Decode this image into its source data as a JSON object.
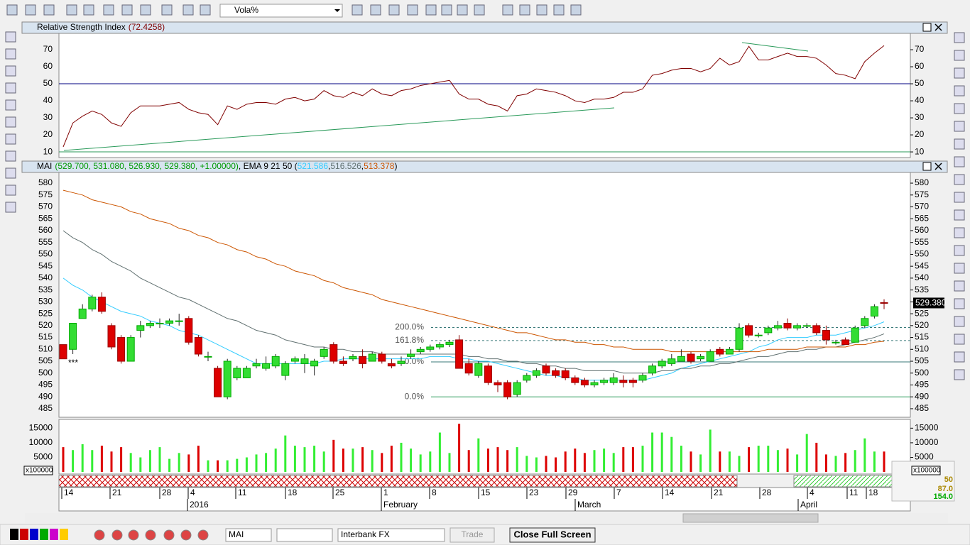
{
  "toolbar": {
    "indicator_combo": "Vola%"
  },
  "chart_data": [
    {
      "type": "line",
      "title": "Relative Strength Index",
      "value_label": "(72.4258)",
      "color": "#800000",
      "level": 50,
      "level_color": "#000080",
      "ylim": [
        6.7,
        79.6
      ],
      "yticks": [
        10,
        20,
        30,
        40,
        50,
        60,
        70
      ],
      "values": [
        13,
        27,
        31,
        34,
        32,
        27,
        25,
        33,
        37,
        37,
        37,
        38,
        39,
        35,
        33,
        32,
        26,
        37,
        35,
        38,
        39,
        39,
        38,
        41,
        42,
        40,
        41,
        46,
        43,
        42,
        45,
        43,
        47,
        44,
        43,
        46,
        47,
        49,
        50,
        51,
        52,
        44,
        41,
        41,
        38,
        37,
        34,
        43,
        44,
        47,
        46,
        45,
        43,
        40,
        39,
        41,
        41,
        42,
        45,
        45,
        47,
        55,
        56,
        58,
        59,
        59,
        57,
        59,
        65,
        61,
        63,
        72,
        64,
        64,
        66,
        68,
        66,
        66,
        65,
        61,
        56,
        55,
        53,
        63,
        68,
        72.4258
      ]
    },
    {
      "type": "candlestick",
      "header": [
        {
          "text": "MAI",
          "color": "#000000"
        },
        {
          "text": "(529.700, 531.080, 526.930, 529.380, +1.00000)",
          "color": "#009900"
        },
        {
          "text": ", EMA 9 21 50 (",
          "color": "#000000"
        },
        {
          "text": "521.586",
          "color": "#33ccff"
        },
        {
          "text": ", ",
          "color": "#000000"
        },
        {
          "text": "516.526",
          "color": "#607070"
        },
        {
          "text": ", ",
          "color": "#000000"
        },
        {
          "text": "513.378",
          "color": "#cc5500"
        },
        {
          "text": " )",
          "color": "#000000"
        }
      ],
      "last_price_label": "529.380",
      "last_price": 529.38,
      "up_color": "#33dd33",
      "down_color": "#dd0000",
      "annotation": "***",
      "ylim": [
        481.4,
        584.5
      ],
      "yticks": [
        485,
        490,
        495,
        500,
        505,
        510,
        515,
        520,
        525,
        530,
        535,
        540,
        545,
        550,
        555,
        560,
        565,
        570,
        575,
        580
      ],
      "fib_levels": [
        {
          "value": 519.2,
          "label": "200.0%"
        },
        {
          "value": 513.7,
          "label": "161.8%"
        },
        {
          "value": 504.7,
          "label": "0.0%"
        },
        {
          "value": 490,
          "label": "0.0%"
        }
      ],
      "open": [
        512,
        510,
        523,
        527,
        532,
        520,
        515,
        505,
        518,
        520,
        521,
        521,
        522,
        523,
        515,
        507,
        502,
        490,
        498,
        498,
        503,
        502,
        503,
        499,
        505,
        504,
        503,
        507,
        512,
        505,
        506,
        507,
        505,
        508,
        504,
        504,
        507,
        509,
        510,
        511,
        512,
        514,
        504,
        499,
        503,
        496,
        496,
        491,
        497,
        499,
        503,
        501,
        501,
        498,
        497,
        495,
        496,
        496,
        497,
        497,
        497,
        500,
        503,
        504,
        505,
        508,
        506,
        505,
        510,
        508,
        510,
        520,
        516,
        517,
        519,
        521,
        519,
        520,
        520,
        518,
        513,
        514,
        513,
        520,
        524,
        529.7
      ],
      "high": [
        512,
        521,
        529,
        533,
        534,
        521,
        516,
        516,
        522,
        522,
        523,
        523,
        525,
        524,
        516,
        509,
        503,
        506,
        503,
        503,
        506,
        507,
        508,
        505,
        507,
        508,
        506,
        511,
        513,
        507,
        508,
        510,
        509,
        509,
        506,
        507,
        510,
        511,
        512,
        513,
        514,
        516,
        506,
        505,
        504,
        497,
        497,
        497,
        500,
        502,
        504,
        502,
        502,
        499,
        498,
        497,
        498,
        500,
        499,
        498,
        500,
        504,
        506,
        508,
        510,
        509,
        508,
        510,
        511,
        511,
        521,
        521,
        517,
        520,
        522,
        523,
        521,
        521,
        521,
        520,
        514,
        515,
        520,
        524,
        529,
        531.08
      ],
      "low": [
        506,
        508,
        523,
        526,
        525,
        510,
        504,
        505,
        515,
        519,
        519,
        520,
        520,
        512,
        507,
        505,
        490,
        489,
        497,
        498,
        502,
        501,
        502,
        497,
        504,
        500,
        499,
        506,
        504,
        503,
        505,
        502,
        505,
        504,
        502,
        503,
        506,
        508,
        509,
        510,
        511,
        502,
        499,
        498,
        495,
        492,
        489,
        490,
        496,
        498,
        499,
        498,
        497,
        495,
        494,
        494,
        495,
        495,
        494,
        494,
        496,
        499,
        502,
        503,
        505,
        504,
        505,
        505,
        507,
        508,
        509,
        515,
        515,
        516,
        518,
        518,
        518,
        519,
        516,
        512,
        512,
        512,
        513,
        519,
        523,
        526.93
      ],
      "close": [
        506,
        521,
        527,
        532,
        526,
        511,
        505,
        515,
        520,
        521,
        521,
        522,
        522,
        513,
        508,
        507,
        490,
        505,
        502,
        502,
        504,
        504,
        507,
        504,
        506,
        506,
        505,
        510,
        505,
        504,
        507,
        504,
        508,
        505,
        503,
        505,
        508,
        510,
        511,
        512,
        513,
        502,
        500,
        504,
        496,
        495,
        490,
        496,
        499,
        501,
        500,
        499,
        498,
        496,
        495,
        496,
        497,
        498,
        496,
        496,
        499,
        503,
        505,
        506,
        507,
        505,
        507,
        509,
        508,
        510,
        519,
        516,
        516,
        519,
        520,
        519,
        520,
        520,
        517,
        514,
        513,
        512,
        519,
        523,
        528,
        529.38
      ],
      "series": [
        {
          "color": "#33ccff",
          "values": [
            540,
            537,
            535,
            532,
            530,
            528,
            526,
            525,
            524,
            522,
            521,
            520,
            518,
            517,
            516,
            514,
            512,
            510,
            508,
            506,
            504,
            504,
            504,
            504,
            504,
            504,
            504,
            505,
            505,
            506,
            506,
            506,
            506,
            506,
            506,
            506,
            506,
            506,
            507,
            507,
            507,
            506,
            506,
            505,
            505,
            504,
            503,
            502,
            501,
            500,
            499,
            499,
            498,
            498,
            497,
            497,
            497,
            497,
            497,
            497,
            497,
            498,
            499,
            500,
            502,
            503,
            504,
            505,
            506,
            507,
            508,
            509,
            511,
            512,
            514,
            515,
            515,
            515,
            516,
            516,
            516,
            517,
            518,
            519,
            520,
            521.586
          ]
        },
        {
          "color": "#607070",
          "values": [
            560,
            557,
            555,
            552,
            550,
            547,
            545,
            543,
            540,
            538,
            536,
            534,
            532,
            531,
            529,
            527,
            525,
            523,
            522,
            520,
            518,
            517,
            516,
            514,
            513,
            512,
            511,
            511,
            510,
            510,
            509,
            509,
            509,
            508,
            508,
            508,
            508,
            508,
            508,
            508,
            508,
            508,
            507,
            507,
            506,
            506,
            505,
            505,
            504,
            504,
            503,
            503,
            502,
            502,
            501,
            501,
            501,
            501,
            500,
            500,
            500,
            500,
            501,
            501,
            502,
            502,
            503,
            503,
            504,
            504,
            505,
            506,
            507,
            507,
            508,
            509,
            509,
            510,
            510,
            511,
            511,
            512,
            513,
            514,
            515,
            516.526
          ]
        },
        {
          "color": "#cc5500",
          "values": [
            577,
            576,
            575,
            573,
            572,
            571,
            570,
            568,
            567,
            565,
            564,
            563,
            561,
            560,
            558,
            557,
            555,
            554,
            552,
            551,
            549,
            548,
            546,
            545,
            543,
            542,
            541,
            539,
            538,
            536,
            535,
            534,
            533,
            531,
            530,
            529,
            528,
            527,
            526,
            525,
            524,
            523,
            522,
            521,
            520,
            519,
            518,
            517,
            517,
            516,
            515,
            514,
            514,
            513,
            513,
            512,
            512,
            511,
            511,
            510,
            510,
            510,
            510,
            509,
            509,
            509,
            509,
            509,
            509,
            509,
            509,
            509,
            509,
            510,
            510,
            510,
            510,
            511,
            511,
            511,
            511,
            511,
            512,
            512,
            513,
            513.378
          ]
        }
      ]
    },
    {
      "type": "bar",
      "unit_label": "x100000",
      "ylim": [
        -700,
        18000
      ],
      "yticks": [
        5000,
        10000,
        15000
      ],
      "values": [
        8500,
        7500,
        9500,
        7500,
        9000,
        7000,
        8500,
        6500,
        5000,
        7500,
        8500,
        4500,
        6500,
        6000,
        9000,
        4000,
        4000,
        4000,
        4500,
        5000,
        6000,
        6500,
        8000,
        12500,
        9000,
        8500,
        9000,
        7000,
        11000,
        8000,
        8000,
        8500,
        7500,
        6500,
        9000,
        10000,
        8000,
        6000,
        7000,
        13500,
        6500,
        16500,
        7500,
        11500,
        8000,
        8500,
        7500,
        8500,
        5500,
        5000,
        5500,
        5000,
        7000,
        8000,
        6500,
        7500,
        8000,
        6500,
        8500,
        8500,
        9000,
        13500,
        13500,
        12000,
        9000,
        7000,
        6000,
        14500,
        7000,
        7000,
        5500,
        8500,
        9000,
        9000,
        7500,
        8000,
        6000,
        13000,
        10000,
        6000,
        5500,
        6500,
        7500,
        11500,
        7000,
        7000
      ]
    }
  ],
  "date_axis": {
    "days": [
      "14",
      "21",
      "28",
      "4",
      "11",
      "18",
      "25",
      "1",
      "8",
      "15",
      "23",
      "29",
      "7",
      "14",
      "21",
      "28",
      "4",
      "11",
      "18"
    ],
    "months": [
      "2016",
      "February",
      "March",
      "April"
    ]
  },
  "status": [
    "50",
    "87.0",
    "154.0"
  ],
  "bottom_bar": {
    "symbol": "MAI",
    "broker": "Interbank FX",
    "trade": "Trade",
    "close": "Close Full Screen"
  }
}
